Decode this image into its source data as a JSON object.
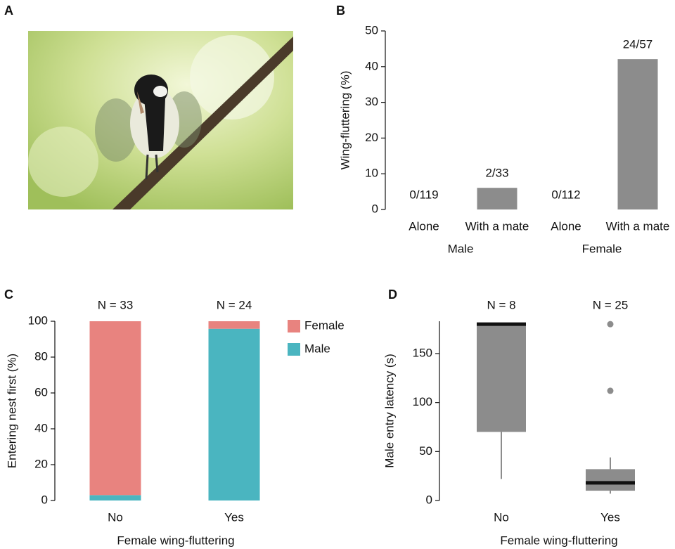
{
  "panel_labels": [
    "A",
    "B",
    "C",
    "D"
  ],
  "chart_data": [
    {
      "type": "bar",
      "ylabel": "Wing-fluttering (%)",
      "categories": [
        "Alone",
        "With a mate",
        "Alone",
        "With a mate"
      ],
      "group_labels": [
        "Male",
        "Female"
      ],
      "values": [
        0,
        6.06,
        0,
        42.1
      ],
      "value_labels": [
        "0/119",
        "2/33",
        "0/112",
        "24/57"
      ],
      "color": "#8c8c8c",
      "ylim": [
        0,
        50
      ],
      "yticks": [
        0,
        10,
        20,
        30,
        40,
        50
      ]
    },
    {
      "type": "stacked_bar",
      "ylabel": "Entering nest first (%)",
      "xlabel": "Female wing-fluttering",
      "categories": [
        "No",
        "Yes"
      ],
      "annotations": [
        "N = 33",
        "N = 24"
      ],
      "series": [
        {
          "name": "Male",
          "color": "#4ab5c0",
          "values": [
            3.0,
            95.8
          ]
        },
        {
          "name": "Female",
          "color": "#e8837f",
          "values": [
            97.0,
            4.2
          ]
        }
      ],
      "ylim": [
        0,
        100
      ],
      "yticks": [
        0,
        20,
        40,
        60,
        80,
        100
      ]
    },
    {
      "type": "box",
      "ylabel": "Male entry latency (s)",
      "xlabel": "Female wing-fluttering",
      "categories": [
        "No",
        "Yes"
      ],
      "annotations": [
        "N = 8",
        "N = 25"
      ],
      "boxes": [
        {
          "whislo": 22,
          "q1": 70,
          "med": 180,
          "q3": 180,
          "whishi": 180,
          "fliers": []
        },
        {
          "whislo": 7,
          "q1": 10,
          "med": 18,
          "q3": 32,
          "whishi": 44,
          "fliers": [
            112,
            180
          ]
        }
      ],
      "color": "#8c8c8c",
      "ylim": [
        0,
        183
      ],
      "yticks": [
        0,
        50,
        100,
        150
      ]
    }
  ]
}
